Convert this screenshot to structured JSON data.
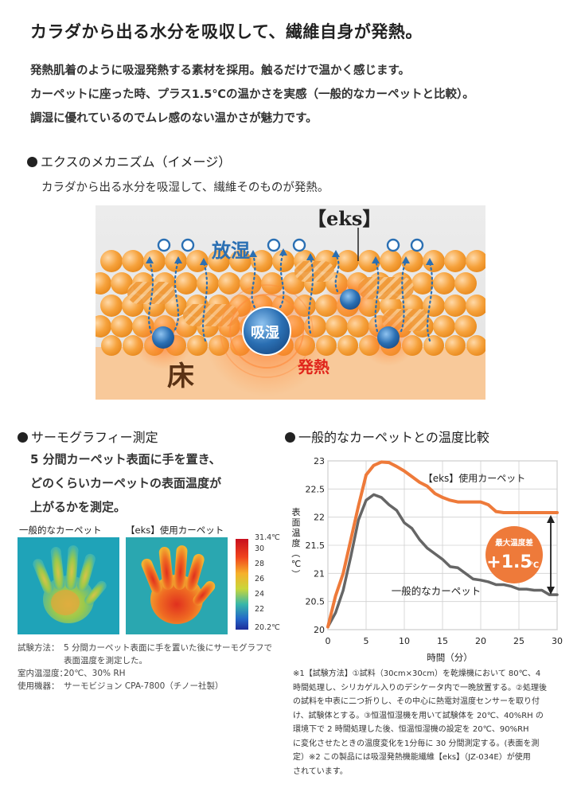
{
  "headline": "カラダから出る水分を吸収して、繊維自身が発熱。",
  "intro": [
    "発熱肌着のように吸湿発熱する素材を採用。触るだけで温かく感じます。",
    "カーペットに座った時、プラス1.5℃の温かさを実感（一般的なカーペットと比較）。",
    "調湿に優れているのでムレ感のない温かさが魅力です。"
  ],
  "mechanism": {
    "title": "エクスのメカニズム（イメージ）",
    "subtitle": "カラダから出る水分を吸湿して、繊維そのものが発熱。",
    "logo": "【eks】",
    "label_release": "放湿",
    "label_absorb": "吸湿",
    "label_floor": "床",
    "label_heat": "発熱"
  },
  "thermography": {
    "title": "サーモグラフィー測定",
    "description": [
      "5 分間カーペット表面に手を置き、",
      "どのくらいカーペットの表面温度が",
      "上がるかを測定。"
    ],
    "label_left": "一般的なカーペット",
    "label_right": "【eks】使用カーペット",
    "colorbar_ticks": [
      "31.4℃",
      "30",
      "28",
      "26",
      "24",
      "22",
      "20.2℃"
    ],
    "meta": [
      {
        "k": "試験方法：",
        "v": "5 分間カーペット表面に手を置いた後にサーモグラフで"
      },
      {
        "k": "",
        "v": "表面温度を測定した。"
      },
      {
        "k": "室内温湿度：",
        "v": "20℃、30% RH"
      },
      {
        "k": "使用機器：",
        "v": "サーモビジョン CPA-7800（チノー社製）"
      }
    ]
  },
  "comparison": {
    "title": "一般的なカーペットとの温度比較",
    "diff_badge_top": "最大温度差",
    "diff_badge_value": "+1.5",
    "diff_badge_unit": "℃",
    "notes": [
      "※1【試験方法】①試料（30cm×30cm）を乾燥機において 80℃、4",
      "時間処理し、シリカゲル入りのデシケータ内で一晩放置する。②処理後",
      "の試料を中表に二つ折りし、その中心に熱電対温度センサーを取り付",
      "け、試験体とする。③恒温恒湿機を用いて試験体を 20℃、40%RH の",
      "環境下で 2 時間処理した後、恒温恒湿機の設定を 20℃、90%RH",
      "に変化させたときの温度変化を1分毎に 30 分間測定する。(表面を測",
      "定）※2 この製品には吸湿発熱機能繊維【eks】（JZ-034E）が使用",
      "されています。"
    ]
  },
  "chart_data": {
    "type": "line",
    "xlabel": "時間（分）",
    "ylabel": "表面温度（℃）",
    "xlim": [
      0,
      30
    ],
    "ylim": [
      20,
      23
    ],
    "xticks": [
      "0",
      "5",
      "10",
      "15",
      "20",
      "25",
      "30"
    ],
    "yticks": [
      "20",
      "20.5",
      "21",
      "21.5",
      "22",
      "22.5",
      "23"
    ],
    "grid": true,
    "series": [
      {
        "name": "【eks】使用カーペット",
        "color": "#ee7a3a",
        "x": [
          0,
          1,
          2,
          3,
          4,
          5,
          6,
          7,
          8,
          9,
          10,
          11,
          12,
          13,
          14,
          15,
          16,
          17,
          18,
          19,
          20,
          21,
          22,
          23,
          24,
          25,
          26,
          27,
          28,
          29,
          30
        ],
        "y": [
          20.05,
          20.6,
          21.0,
          21.6,
          22.2,
          22.75,
          22.92,
          22.98,
          22.97,
          22.9,
          22.82,
          22.72,
          22.62,
          22.55,
          22.42,
          22.35,
          22.3,
          22.27,
          22.27,
          22.27,
          22.27,
          22.22,
          22.1,
          22.08,
          22.08,
          22.08,
          22.08,
          22.08,
          22.08,
          22.08,
          22.08
        ]
      },
      {
        "name": "一般的なカーペット",
        "color": "#666666",
        "x": [
          0,
          1,
          2,
          3,
          4,
          5,
          6,
          7,
          8,
          9,
          10,
          11,
          12,
          13,
          14,
          15,
          16,
          17,
          18,
          19,
          20,
          21,
          22,
          23,
          24,
          25,
          26,
          27,
          28,
          29,
          30
        ],
        "y": [
          20.05,
          20.3,
          20.7,
          21.3,
          21.95,
          22.3,
          22.4,
          22.35,
          22.22,
          22.12,
          21.9,
          21.8,
          21.6,
          21.45,
          21.35,
          21.25,
          21.12,
          21.1,
          21.0,
          20.9,
          20.88,
          20.85,
          20.8,
          20.8,
          20.77,
          20.72,
          20.72,
          20.7,
          20.7,
          20.62,
          20.62
        ]
      }
    ]
  },
  "colors": {
    "orange": "#ee7a3a",
    "gray_line": "#666666",
    "blue": "#2a6fb3"
  }
}
